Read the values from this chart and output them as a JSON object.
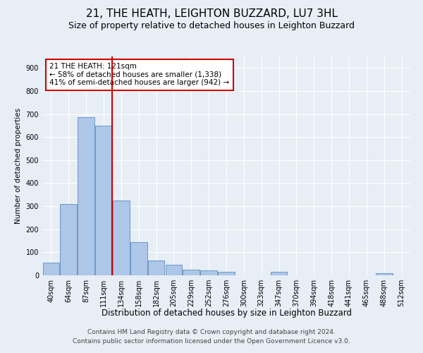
{
  "title": "21, THE HEATH, LEIGHTON BUZZARD, LU7 3HL",
  "subtitle": "Size of property relative to detached houses in Leighton Buzzard",
  "xlabel": "Distribution of detached houses by size in Leighton Buzzard",
  "ylabel": "Number of detached properties",
  "footer_line1": "Contains HM Land Registry data © Crown copyright and database right 2024.",
  "footer_line2": "Contains public sector information licensed under the Open Government Licence v3.0.",
  "bar_labels": [
    "40sqm",
    "64sqm",
    "87sqm",
    "111sqm",
    "134sqm",
    "158sqm",
    "182sqm",
    "205sqm",
    "229sqm",
    "252sqm",
    "276sqm",
    "300sqm",
    "323sqm",
    "347sqm",
    "370sqm",
    "394sqm",
    "418sqm",
    "441sqm",
    "465sqm",
    "488sqm",
    "512sqm"
  ],
  "bar_values": [
    55,
    310,
    685,
    650,
    325,
    145,
    65,
    45,
    25,
    20,
    15,
    0,
    0,
    15,
    0,
    0,
    0,
    0,
    0,
    10,
    0
  ],
  "bar_color": "#aec6e8",
  "bar_edge_color": "#5a8fc2",
  "annotation_line1": "21 THE HEATH: 121sqm",
  "annotation_line2": "← 58% of detached houses are smaller (1,338)",
  "annotation_line3": "41% of semi-detached houses are larger (942) →",
  "vline_color": "#cc0000",
  "vline_position": 3.5,
  "ylim": [
    0,
    950
  ],
  "yticks": [
    0,
    100,
    200,
    300,
    400,
    500,
    600,
    700,
    800,
    900
  ],
  "background_color": "#e8eef5",
  "plot_bg_color": "#e8eef5",
  "grid_color": "#ffffff",
  "title_fontsize": 11,
  "subtitle_fontsize": 9,
  "annotation_fontsize": 7.5,
  "ylabel_fontsize": 7.5,
  "xlabel_fontsize": 8.5,
  "footer_fontsize": 6.5,
  "tick_fontsize": 7
}
